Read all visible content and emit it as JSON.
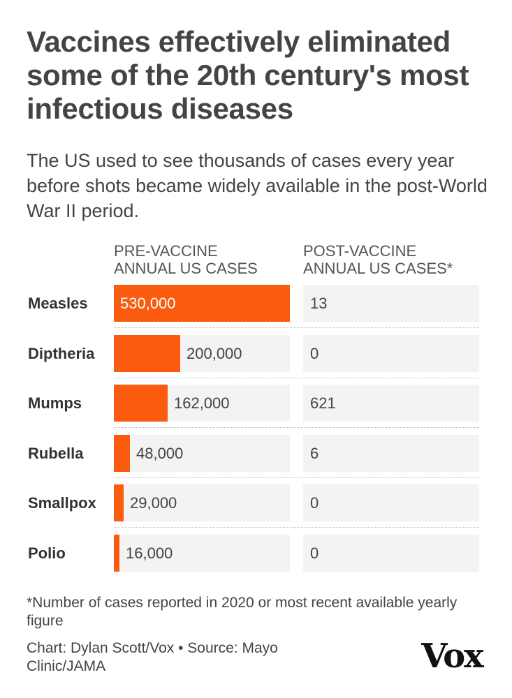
{
  "title": "Vaccines effectively eliminated some of the 20th century's most infectious diseases",
  "subtitle": "The US used to see thousands of cases every year before shots became widely available in the post-World War II period.",
  "columns": {
    "pre": [
      "PRE-VACCINE",
      "ANNUAL US CASES"
    ],
    "post": [
      "POST-VACCINE",
      "ANNUAL US CASES*"
    ]
  },
  "chart_data": {
    "type": "bar",
    "title": "Vaccines effectively eliminated some of the 20th century's most infectious diseases",
    "categories": [
      "Measles",
      "Diptheria",
      "Mumps",
      "Rubella",
      "Smallpox",
      "Polio"
    ],
    "series": [
      {
        "name": "PRE-VACCINE ANNUAL US CASES",
        "values": [
          530000,
          200000,
          162000,
          48000,
          29000,
          16000
        ],
        "labels": [
          "530,000",
          "200,000",
          "162,000",
          "48,000",
          "29,000",
          "16,000"
        ]
      },
      {
        "name": "POST-VACCINE ANNUAL US CASES*",
        "values": [
          13,
          0,
          621,
          6,
          0,
          0
        ],
        "labels": [
          "13",
          "0",
          "621",
          "6",
          "0",
          "0"
        ]
      }
    ],
    "xlim": [
      0,
      530000
    ],
    "grid": false,
    "bar_color": "#fa5b0f",
    "track_color": "#f3f3f3"
  },
  "footnote": "*Number of cases reported in 2020 or most recent available yearly figure",
  "credit": "Chart: Dylan Scott/Vox • Source: Mayo Clinic/JAMA",
  "logo_text": "Vox"
}
